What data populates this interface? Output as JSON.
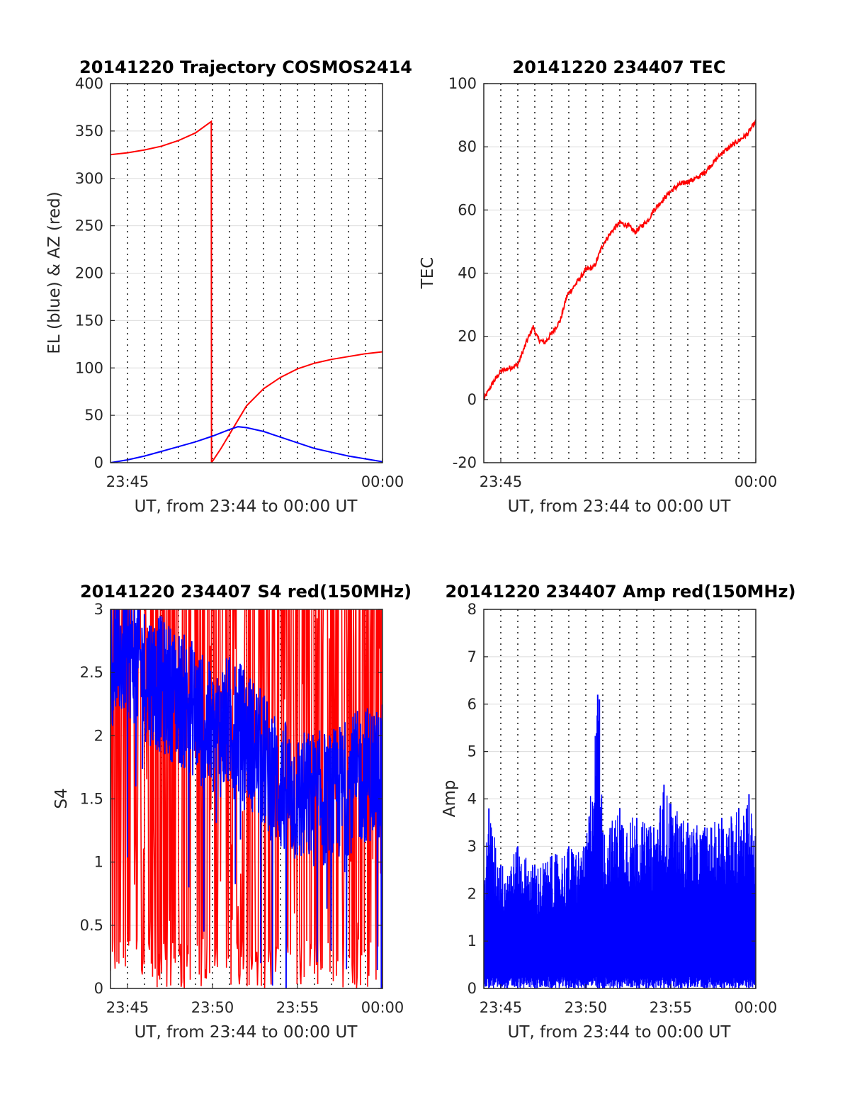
{
  "chart_data": [
    {
      "type": "line",
      "title": "20141220 Trajectory COSMOS2414",
      "xlabel": "UT, from 23:44 to 00:00 UT",
      "ylabel": "EL (blue) & AZ (red)",
      "xlim_minutes_after_2344": [
        0,
        16
      ],
      "xticks": [
        {
          "at": 1,
          "label": "23:45"
        },
        {
          "at": 16,
          "label": "00:00"
        }
      ],
      "ylim": [
        0,
        400
      ],
      "yticks": [
        0,
        50,
        100,
        150,
        200,
        250,
        300,
        350,
        400
      ],
      "grid": true,
      "series": [
        {
          "description_color": "red",
          "color": "#ff0000",
          "x": [
            0,
            1,
            2,
            3,
            4,
            5,
            5.93,
            5.94,
            6.5,
            7,
            7.5,
            8,
            9,
            10,
            11,
            12,
            13,
            14,
            15,
            16
          ],
          "y": [
            325,
            327,
            330,
            334,
            340,
            348,
            360,
            0,
            15,
            30,
            45,
            60,
            78,
            90,
            99,
            105,
            109,
            112,
            115,
            117
          ]
        },
        {
          "description_color": "blue",
          "color": "#0000ff",
          "x": [
            0,
            1,
            2,
            3,
            4,
            5,
            6,
            7,
            7.5,
            8,
            9,
            10,
            11,
            12,
            13,
            14,
            15,
            16
          ],
          "y": [
            0,
            3,
            7,
            12,
            17,
            22,
            28,
            35,
            38,
            37,
            33,
            27,
            21,
            15,
            11,
            7,
            4,
            1
          ]
        }
      ]
    },
    {
      "type": "line",
      "title": "20141220 234407 TEC",
      "xlabel": "UT, from 23:44 to 00:00 UT",
      "ylabel": "TEC",
      "xlim_minutes_after_2344": [
        0,
        16
      ],
      "xticks": [
        {
          "at": 1,
          "label": "23:45"
        },
        {
          "at": 16,
          "label": "00:00"
        }
      ],
      "ylim": [
        -20,
        100
      ],
      "yticks": [
        -20,
        0,
        20,
        40,
        60,
        80,
        100
      ],
      "grid": true,
      "series": [
        {
          "color": "#ff0000",
          "x": [
            0,
            0.5,
            1,
            1.5,
            2,
            2.5,
            2.9,
            3.2,
            3.6,
            4,
            4.5,
            4.9,
            5.2,
            5.6,
            6,
            6.5,
            7,
            7.5,
            8,
            8.5,
            8.9,
            9.3,
            9.7,
            10,
            10.5,
            11,
            11.5,
            12,
            12.5,
            13,
            13.5,
            14,
            14.5,
            15,
            15.5,
            16
          ],
          "y": [
            0,
            5,
            9,
            10,
            11,
            18,
            23,
            19,
            18,
            21,
            25,
            33,
            35,
            38,
            41,
            42,
            49,
            53,
            56,
            55,
            53,
            55,
            57,
            60,
            63,
            66,
            68,
            69,
            70,
            72,
            75,
            78,
            80,
            82,
            84,
            88
          ]
        }
      ]
    },
    {
      "type": "line",
      "title": "20141220 234407 S4 red(150MHz)",
      "xlabel": "UT, from 23:44 to 00:00 UT",
      "ylabel": "S4",
      "xlim_minutes_after_2344": [
        0,
        16
      ],
      "xticks": [
        {
          "at": 1,
          "label": "23:45"
        },
        {
          "at": 6,
          "label": "23:50"
        },
        {
          "at": 11,
          "label": "23:55"
        },
        {
          "at": 16,
          "label": "00:00"
        }
      ],
      "ylim": [
        0,
        3
      ],
      "yticks": [
        0,
        0.5,
        1,
        1.5,
        2,
        2.5,
        3
      ],
      "grid": true,
      "series": [
        {
          "description_color": "red",
          "color": "#ff0000",
          "note": "highly noisy, spanning 0 to above 3",
          "x": [
            0,
            2,
            4,
            6,
            8,
            10,
            12,
            14,
            16
          ],
          "y_band": [
            [
              0,
              3
            ],
            [
              0,
              3
            ],
            [
              0,
              3
            ],
            [
              0.2,
              3
            ],
            [
              0.3,
              3
            ],
            [
              0.5,
              3
            ],
            [
              0.2,
              3
            ],
            [
              0,
              3
            ],
            [
              0,
              3
            ]
          ]
        },
        {
          "description_color": "blue",
          "color": "#0000ff",
          "note": "noisy, mean value shown",
          "x": [
            0,
            1,
            2,
            3,
            4,
            5,
            6,
            7,
            8,
            9,
            10,
            11,
            12,
            13,
            14,
            15,
            16
          ],
          "y": [
            2.6,
            2.7,
            2.5,
            2.4,
            2.3,
            2.2,
            2.0,
            2.1,
            2.0,
            1.8,
            1.6,
            1.5,
            1.5,
            1.5,
            1.6,
            1.7,
            1.7
          ]
        }
      ]
    },
    {
      "type": "line",
      "title": "20141220 234407 Amp red(150MHz)",
      "xlabel": "UT, from 23:44 to 00:00 UT",
      "ylabel": "Amp",
      "xlim_minutes_after_2344": [
        0,
        16
      ],
      "xticks": [
        {
          "at": 1,
          "label": "23:45"
        },
        {
          "at": 6,
          "label": "23:50"
        },
        {
          "at": 11,
          "label": "23:55"
        },
        {
          "at": 16,
          "label": "00:00"
        }
      ],
      "ylim": [
        0,
        8
      ],
      "yticks": [
        0,
        1,
        2,
        3,
        4,
        5,
        6,
        7,
        8
      ],
      "grid": true,
      "series": [
        {
          "color": "#0000ff",
          "note": "dense noisy signal from 0, envelope shown",
          "x": [
            0,
            0.3,
            1,
            2,
            3,
            4,
            5,
            6,
            6.7,
            6.8,
            7,
            8,
            9,
            10,
            10.6,
            11,
            12,
            13,
            14,
            15,
            15.6,
            16
          ],
          "y_max": [
            2.2,
            3.8,
            2.6,
            3.0,
            2.6,
            2.8,
            3.0,
            3.0,
            6.2,
            6.1,
            3.3,
            3.8,
            3.6,
            3.4,
            4.3,
            3.9,
            3.5,
            3.4,
            3.6,
            3.8,
            4.1,
            3.2
          ]
        }
      ]
    }
  ],
  "colors": {
    "red": "#ff0000",
    "blue": "#0000ff",
    "grid": "#dcdcdc",
    "axis": "#262626"
  }
}
